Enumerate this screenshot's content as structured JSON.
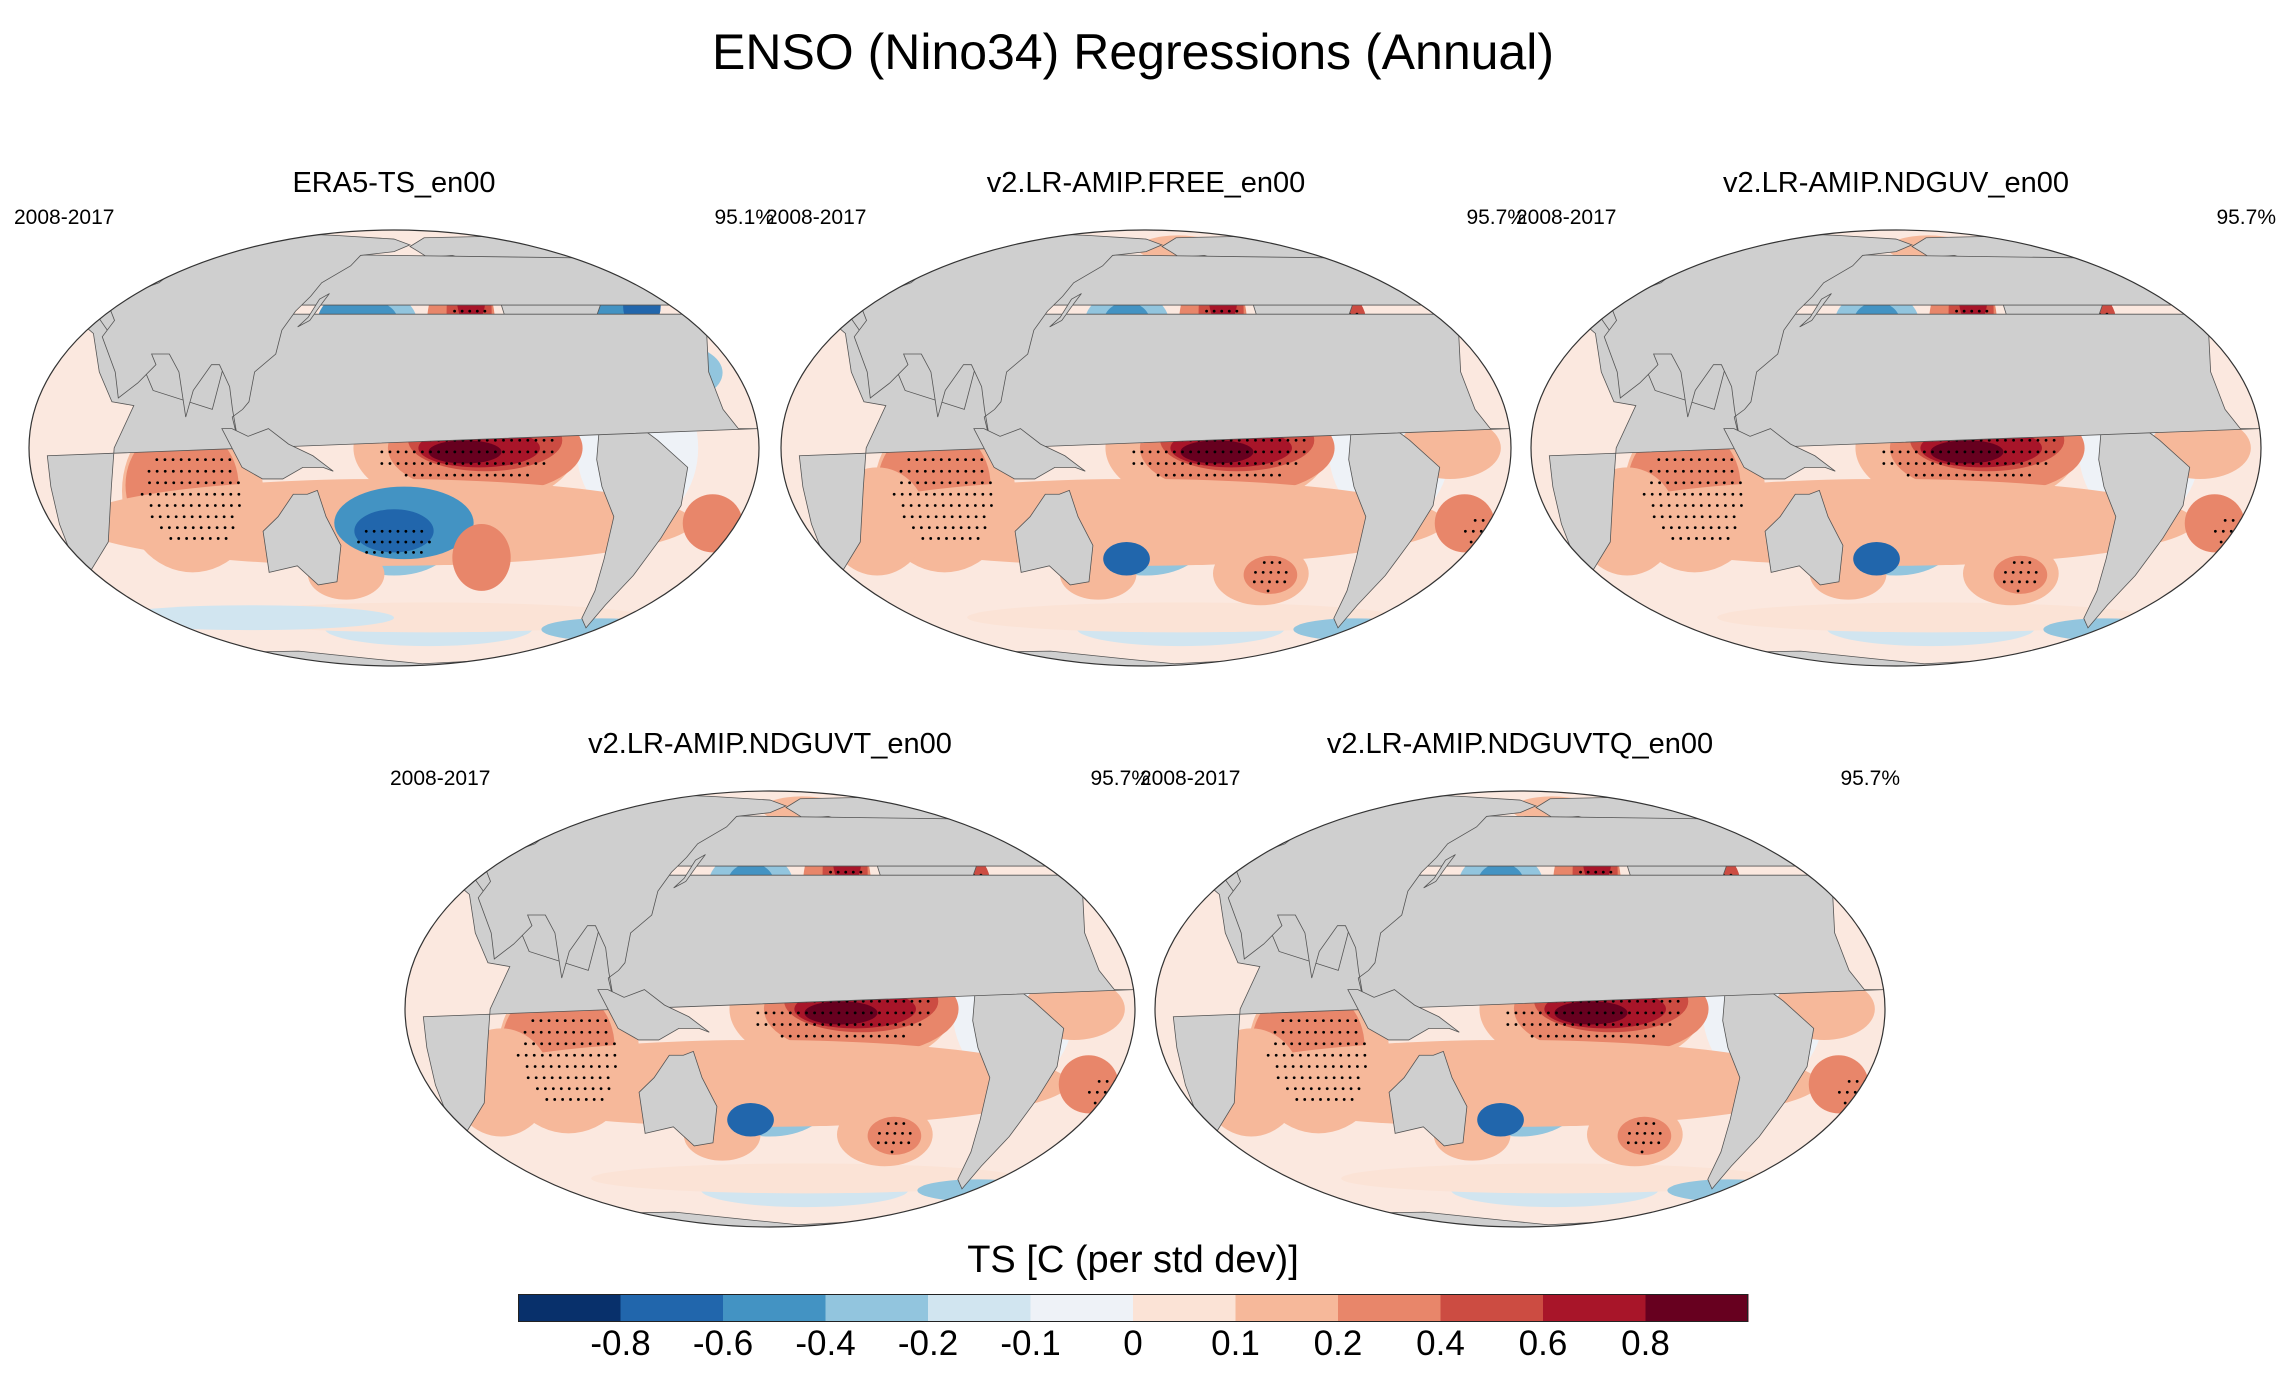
{
  "title": "ENSO (Nino34) Regressions (Annual)",
  "panels": [
    {
      "name": "ERA5-TS_en00",
      "period": "2008-2017",
      "significance": "95.1%",
      "style": "obs"
    },
    {
      "name": "v2.LR-AMIP.FREE_en00",
      "period": "2008-2017",
      "significance": "95.7%",
      "style": "model"
    },
    {
      "name": "v2.LR-AMIP.NDGUV_en00",
      "period": "2008-2017",
      "significance": "95.7%",
      "style": "model"
    },
    {
      "name": "v2.LR-AMIP.NDGUVT_en00",
      "period": "2008-2017",
      "significance": "95.7%",
      "style": "model"
    },
    {
      "name": "v2.LR-AMIP.NDGUVTQ_en00",
      "period": "2008-2017",
      "significance": "95.7%",
      "style": "model"
    }
  ],
  "colorbar": {
    "title": "TS [C (per std dev)]",
    "labels": [
      "-0.8",
      "-0.6",
      "-0.4",
      "-0.2",
      "-0.1",
      "0",
      "0.1",
      "0.2",
      "0.4",
      "0.6",
      "0.8"
    ],
    "colors": [
      "#08306b",
      "#2166ac",
      "#4393c3",
      "#92c5de",
      "#d1e5f0",
      "#eef2f7",
      "#fbe3d6",
      "#f6b89a",
      "#e8866a",
      "#cc4c42",
      "#a81529",
      "#67001f"
    ]
  },
  "colors": {
    "land": "#cfcfcf",
    "ocean_neutral": "#fbe8df",
    "coast": "#555555"
  }
}
